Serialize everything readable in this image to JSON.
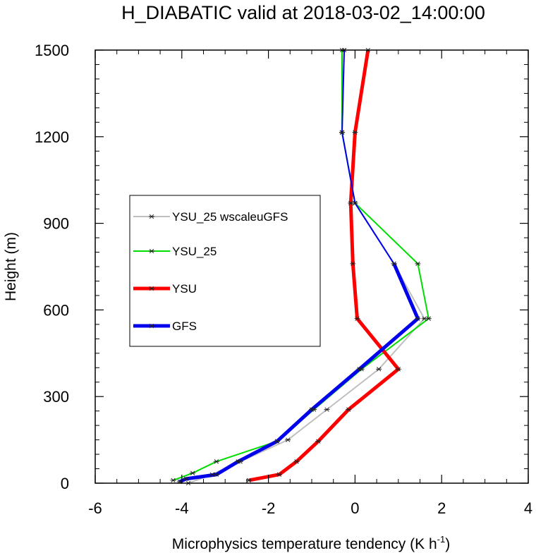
{
  "chart_data": {
    "type": "line",
    "title": "H_DIABATIC valid at 2018-03-02_14:00:00",
    "xlabel": "Microphysics temperature tendency (K h",
    "xlabel_sup": "-1",
    "xlabel_end": ")",
    "ylabel": "Height (m)",
    "xlim": [
      -6,
      4
    ],
    "ylim": [
      0,
      1500
    ],
    "x_ticks": [
      -6,
      -4,
      -2,
      0,
      2,
      4
    ],
    "y_ticks": [
      0,
      300,
      600,
      900,
      1200,
      1500
    ],
    "x_tick_labels": [
      "-6",
      "-4",
      "-2",
      "0",
      "2",
      "4"
    ],
    "y_tick_labels": [
      "0",
      "300",
      "600",
      "900",
      "1200",
      "1500"
    ],
    "legend_position": "center-left",
    "marker": "asterisk",
    "series": [
      {
        "name": "YSU_25 wscaleuGFS",
        "color": "#bfbfbf",
        "width": 2,
        "points": [
          [
            -3.85,
            0
          ],
          [
            -3.3,
            30
          ],
          [
            -2.65,
            75
          ],
          [
            -1.55,
            150
          ],
          [
            -0.65,
            255
          ],
          [
            0.55,
            395
          ],
          [
            1.6,
            570
          ],
          [
            0.9,
            760
          ],
          [
            0.0,
            970
          ],
          [
            -0.3,
            1215
          ],
          [
            -0.25,
            1500
          ]
        ]
      },
      {
        "name": "YSU_25",
        "color": "#00dd00",
        "width": 2,
        "points": [
          [
            -4.2,
            10
          ],
          [
            -3.75,
            35
          ],
          [
            -3.2,
            75
          ],
          [
            -1.8,
            145
          ],
          [
            -0.95,
            255
          ],
          [
            0.15,
            395
          ],
          [
            1.7,
            570
          ],
          [
            1.45,
            760
          ],
          [
            0.0,
            970
          ],
          [
            -0.3,
            1215
          ],
          [
            -0.3,
            1500
          ]
        ]
      },
      {
        "name": "YSU",
        "color": "#ff0000",
        "width": 5,
        "points": [
          [
            -2.45,
            10
          ],
          [
            -1.75,
            30
          ],
          [
            -1.35,
            75
          ],
          [
            -0.85,
            145
          ],
          [
            -0.15,
            255
          ],
          [
            1.0,
            395
          ],
          [
            0.05,
            570
          ],
          [
            -0.05,
            760
          ],
          [
            -0.1,
            970
          ],
          [
            0.0,
            1215
          ],
          [
            0.3,
            1500
          ]
        ]
      },
      {
        "name": "GFS",
        "color": "#0000ee",
        "width": 5,
        "thin_above": 900,
        "thin_width": 2,
        "points": [
          [
            -4.05,
            5
          ],
          [
            -3.9,
            15
          ],
          [
            -3.2,
            30
          ],
          [
            -2.7,
            75
          ],
          [
            -1.8,
            145
          ],
          [
            -1.0,
            255
          ],
          [
            0.1,
            395
          ],
          [
            1.45,
            570
          ],
          [
            0.9,
            760
          ],
          [
            0.0,
            970
          ],
          [
            -0.3,
            1215
          ],
          [
            -0.25,
            1500
          ]
        ]
      }
    ]
  }
}
